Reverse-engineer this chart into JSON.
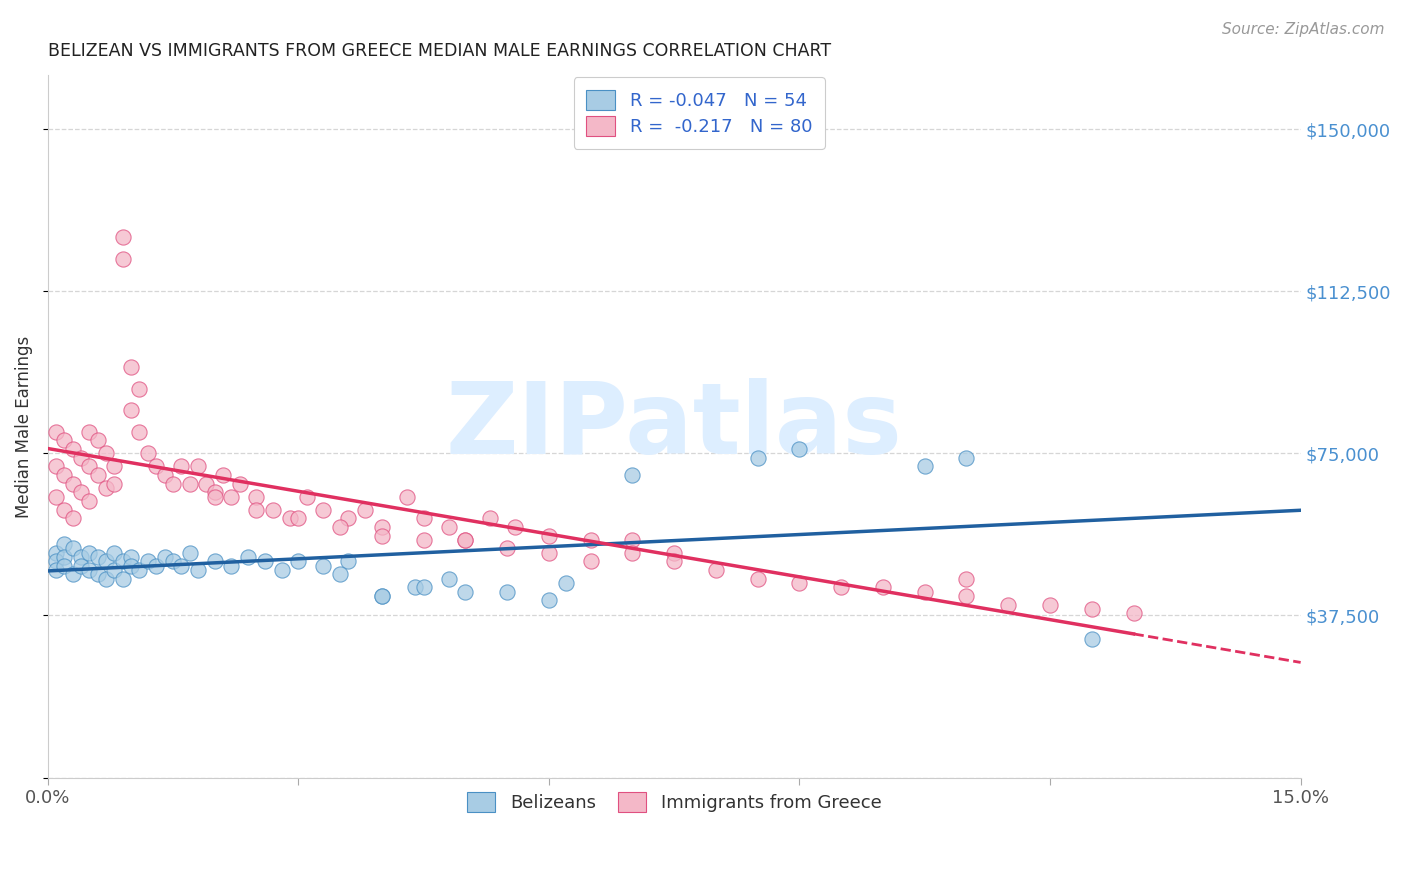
{
  "title": "BELIZEAN VS IMMIGRANTS FROM GREECE MEDIAN MALE EARNINGS CORRELATION CHART",
  "source": "Source: ZipAtlas.com",
  "ylabel": "Median Male Earnings",
  "ytick_positions": [
    0,
    37500,
    75000,
    112500,
    150000
  ],
  "ytick_labels": [
    "",
    "$37,500",
    "$75,000",
    "$112,500",
    "$150,000"
  ],
  "xtick_positions": [
    0.0,
    0.03,
    0.06,
    0.09,
    0.12,
    0.15
  ],
  "xtick_labels": [
    "0.0%",
    "",
    "",
    "",
    "",
    "15.0%"
  ],
  "xlim": [
    0.0,
    0.15
  ],
  "ylim": [
    0,
    162500
  ],
  "color_blue_fill": "#a8cce4",
  "color_blue_edge": "#4a90c4",
  "color_pink_fill": "#f4b8c8",
  "color_pink_edge": "#e05080",
  "trend_blue_color": "#2060a0",
  "trend_pink_color": "#e03060",
  "watermark_text": "ZIPatlas",
  "watermark_color": "#ddeeff",
  "legend_label1": "R = -0.047   N = 54",
  "legend_label2": "R =  -0.217   N = 80",
  "bottom_label1": "Belizeans",
  "bottom_label2": "Immigrants from Greece",
  "bel_x": [
    0.001,
    0.001,
    0.001,
    0.002,
    0.002,
    0.002,
    0.003,
    0.003,
    0.004,
    0.004,
    0.005,
    0.005,
    0.006,
    0.006,
    0.007,
    0.007,
    0.008,
    0.008,
    0.009,
    0.009,
    0.01,
    0.01,
    0.011,
    0.012,
    0.013,
    0.014,
    0.015,
    0.016,
    0.017,
    0.018,
    0.02,
    0.022,
    0.024,
    0.026,
    0.028,
    0.03,
    0.033,
    0.036,
    0.04,
    0.044,
    0.048,
    0.055,
    0.062,
    0.035,
    0.04,
    0.045,
    0.05,
    0.06,
    0.07,
    0.085,
    0.09,
    0.105,
    0.11,
    0.125
  ],
  "bel_y": [
    52000,
    50000,
    48000,
    54000,
    51000,
    49000,
    53000,
    47000,
    51000,
    49000,
    52000,
    48000,
    51000,
    47000,
    50000,
    46000,
    52000,
    48000,
    50000,
    46000,
    51000,
    49000,
    48000,
    50000,
    49000,
    51000,
    50000,
    49000,
    52000,
    48000,
    50000,
    49000,
    51000,
    50000,
    48000,
    50000,
    49000,
    50000,
    42000,
    44000,
    46000,
    43000,
    45000,
    47000,
    42000,
    44000,
    43000,
    41000,
    70000,
    74000,
    76000,
    72000,
    74000,
    32000
  ],
  "grc_x": [
    0.001,
    0.001,
    0.001,
    0.002,
    0.002,
    0.002,
    0.003,
    0.003,
    0.003,
    0.004,
    0.004,
    0.005,
    0.005,
    0.005,
    0.006,
    0.006,
    0.007,
    0.007,
    0.008,
    0.008,
    0.009,
    0.009,
    0.01,
    0.01,
    0.011,
    0.011,
    0.012,
    0.013,
    0.014,
    0.015,
    0.016,
    0.017,
    0.018,
    0.019,
    0.02,
    0.021,
    0.022,
    0.023,
    0.025,
    0.027,
    0.029,
    0.031,
    0.033,
    0.036,
    0.038,
    0.04,
    0.043,
    0.045,
    0.048,
    0.05,
    0.053,
    0.056,
    0.06,
    0.065,
    0.07,
    0.075,
    0.02,
    0.025,
    0.03,
    0.035,
    0.04,
    0.045,
    0.05,
    0.055,
    0.06,
    0.065,
    0.07,
    0.075,
    0.08,
    0.085,
    0.09,
    0.095,
    0.1,
    0.105,
    0.11,
    0.115,
    0.12,
    0.125,
    0.13,
    0.11
  ],
  "grc_y": [
    80000,
    72000,
    65000,
    78000,
    70000,
    62000,
    76000,
    68000,
    60000,
    74000,
    66000,
    80000,
    72000,
    64000,
    78000,
    70000,
    75000,
    67000,
    72000,
    68000,
    120000,
    125000,
    95000,
    85000,
    90000,
    80000,
    75000,
    72000,
    70000,
    68000,
    72000,
    68000,
    72000,
    68000,
    66000,
    70000,
    65000,
    68000,
    65000,
    62000,
    60000,
    65000,
    62000,
    60000,
    62000,
    58000,
    65000,
    60000,
    58000,
    55000,
    60000,
    58000,
    56000,
    55000,
    55000,
    52000,
    65000,
    62000,
    60000,
    58000,
    56000,
    55000,
    55000,
    53000,
    52000,
    50000,
    52000,
    50000,
    48000,
    46000,
    45000,
    44000,
    44000,
    43000,
    42000,
    40000,
    40000,
    39000,
    38000,
    46000
  ]
}
